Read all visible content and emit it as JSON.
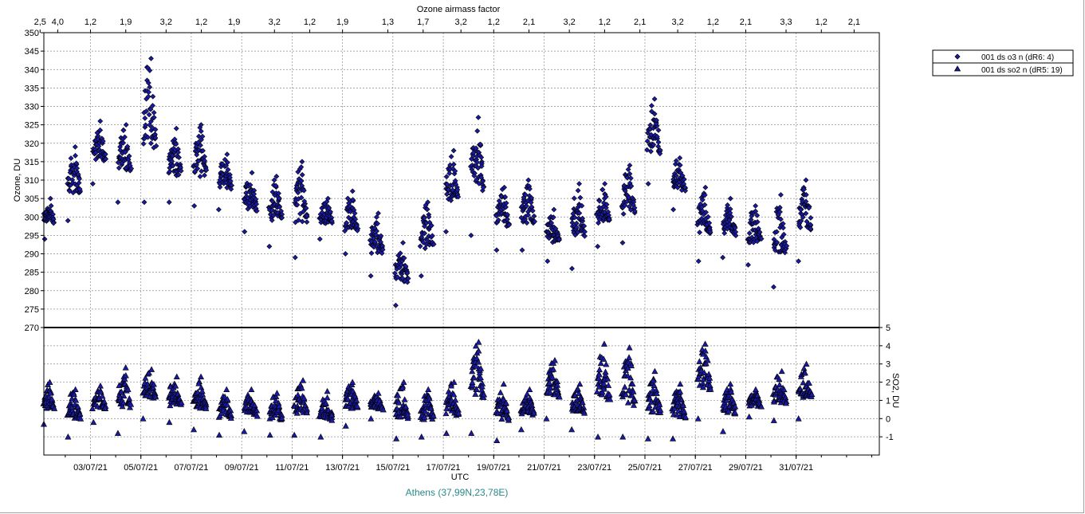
{
  "chart_data": {
    "type": "scatter",
    "top_axis": {
      "label": "Ozone airmass factor",
      "ticks": [
        {
          "x": 0.0,
          "label": "2,5"
        },
        {
          "x": 0.7,
          "label": "4,0"
        },
        {
          "x": 2.0,
          "label": "1,2"
        },
        {
          "x": 3.4,
          "label": "1,9"
        },
        {
          "x": 5.0,
          "label": "3,2"
        },
        {
          "x": 6.4,
          "label": "1,2"
        },
        {
          "x": 7.7,
          "label": "1,9"
        },
        {
          "x": 9.3,
          "label": "3,2"
        },
        {
          "x": 10.7,
          "label": "1,2"
        },
        {
          "x": 12.0,
          "label": "1,9"
        },
        {
          "x": 13.8,
          "label": "1,3"
        },
        {
          "x": 15.2,
          "label": "1,7"
        },
        {
          "x": 16.7,
          "label": "3,2"
        },
        {
          "x": 18.0,
          "label": "1,2"
        },
        {
          "x": 19.4,
          "label": "2,1"
        },
        {
          "x": 21.0,
          "label": "3,2"
        },
        {
          "x": 22.4,
          "label": "1,2"
        },
        {
          "x": 23.8,
          "label": "2,1"
        },
        {
          "x": 25.3,
          "label": "3,2"
        },
        {
          "x": 26.7,
          "label": "1,2"
        },
        {
          "x": 28.0,
          "label": "2,1"
        },
        {
          "x": 29.6,
          "label": "3,3"
        },
        {
          "x": 31.0,
          "label": "1,2"
        },
        {
          "x": 32.3,
          "label": "2,1"
        }
      ]
    },
    "x_axis": {
      "label": "UTC",
      "range": [
        0.15,
        33.3
      ],
      "ticks": [
        {
          "x": 2.0,
          "label": "03/07/21"
        },
        {
          "x": 4.0,
          "label": "05/07/21"
        },
        {
          "x": 6.0,
          "label": "07/07/21"
        },
        {
          "x": 8.0,
          "label": "09/07/21"
        },
        {
          "x": 10.0,
          "label": "11/07/21"
        },
        {
          "x": 12.0,
          "label": "13/07/21"
        },
        {
          "x": 14.0,
          "label": "15/07/21"
        },
        {
          "x": 16.0,
          "label": "17/07/21"
        },
        {
          "x": 18.0,
          "label": "19/07/21"
        },
        {
          "x": 20.0,
          "label": "21/07/21"
        },
        {
          "x": 22.0,
          "label": "23/07/21"
        },
        {
          "x": 24.0,
          "label": "25/07/21"
        },
        {
          "x": 26.0,
          "label": "27/07/21"
        },
        {
          "x": 28.0,
          "label": "29/07/21"
        },
        {
          "x": 30.0,
          "label": "31/07/21"
        }
      ]
    },
    "ozone_panel": {
      "ylabel": "Ozone, DU",
      "ylim": [
        270,
        350
      ],
      "yticks": [
        270,
        275,
        280,
        285,
        290,
        295,
        300,
        305,
        310,
        315,
        320,
        325,
        330,
        335,
        340,
        345,
        350
      ],
      "grid": true
    },
    "so2_panel": {
      "ylabel": "SO2, DU",
      "ylim": [
        -2,
        5
      ],
      "yticks": [
        -1,
        0,
        1,
        2,
        3,
        4,
        5
      ],
      "grid": true
    },
    "legend": {
      "placement": "top-right",
      "items": [
        {
          "label": "001 ds o3  n (dR6: 4)",
          "marker": "diamond"
        },
        {
          "label": "001 ds so2 n (dR5: 19)",
          "marker": "triangle"
        }
      ]
    },
    "series": [
      {
        "name": "001 ds o3  n (dR6: 4)",
        "panel": "ozone",
        "marker": "diamond",
        "clusters": [
          {
            "x0": 0.15,
            "x1": 0.55,
            "lo": 294,
            "hi": 305
          },
          {
            "x0": 1.1,
            "x1": 1.6,
            "lo": 299,
            "hi": 319
          },
          {
            "x0": 2.1,
            "x1": 2.6,
            "lo": 309,
            "hi": 326
          },
          {
            "x0": 3.1,
            "x1": 3.6,
            "lo": 304,
            "hi": 325
          },
          {
            "x0": 4.1,
            "x1": 4.6,
            "lo": 304,
            "hi": 343
          },
          {
            "x0": 5.1,
            "x1": 5.6,
            "lo": 304,
            "hi": 324
          },
          {
            "x0": 6.1,
            "x1": 6.6,
            "lo": 303,
            "hi": 325
          },
          {
            "x0": 7.1,
            "x1": 7.6,
            "lo": 302,
            "hi": 317
          },
          {
            "x0": 8.1,
            "x1": 8.6,
            "lo": 296,
            "hi": 312
          },
          {
            "x0": 9.1,
            "x1": 9.6,
            "lo": 292,
            "hi": 311
          },
          {
            "x0": 10.1,
            "x1": 10.6,
            "lo": 289,
            "hi": 315
          },
          {
            "x0": 11.1,
            "x1": 11.6,
            "lo": 294,
            "hi": 305
          },
          {
            "x0": 12.1,
            "x1": 12.6,
            "lo": 290,
            "hi": 307
          },
          {
            "x0": 13.1,
            "x1": 13.6,
            "lo": 284,
            "hi": 301
          },
          {
            "x0": 14.1,
            "x1": 14.6,
            "lo": 276,
            "hi": 293
          },
          {
            "x0": 15.1,
            "x1": 15.6,
            "lo": 284,
            "hi": 304
          },
          {
            "x0": 16.1,
            "x1": 16.6,
            "lo": 296,
            "hi": 318
          },
          {
            "x0": 17.1,
            "x1": 17.6,
            "lo": 295,
            "hi": 327
          },
          {
            "x0": 18.1,
            "x1": 18.6,
            "lo": 291,
            "hi": 308
          },
          {
            "x0": 19.1,
            "x1": 19.6,
            "lo": 291,
            "hi": 310
          },
          {
            "x0": 20.1,
            "x1": 20.6,
            "lo": 288,
            "hi": 302
          },
          {
            "x0": 21.1,
            "x1": 21.6,
            "lo": 286,
            "hi": 309
          },
          {
            "x0": 22.1,
            "x1": 22.6,
            "lo": 292,
            "hi": 309
          },
          {
            "x0": 23.1,
            "x1": 23.6,
            "lo": 293,
            "hi": 314
          },
          {
            "x0": 24.1,
            "x1": 24.6,
            "lo": 309,
            "hi": 332
          },
          {
            "x0": 25.1,
            "x1": 25.6,
            "lo": 302,
            "hi": 316
          },
          {
            "x0": 26.1,
            "x1": 26.6,
            "lo": 288,
            "hi": 308
          },
          {
            "x0": 27.1,
            "x1": 27.6,
            "lo": 289,
            "hi": 305
          },
          {
            "x0": 28.1,
            "x1": 28.6,
            "lo": 287,
            "hi": 303
          },
          {
            "x0": 29.1,
            "x1": 29.6,
            "lo": 281,
            "hi": 306
          },
          {
            "x0": 30.1,
            "x1": 30.6,
            "lo": 288,
            "hi": 310
          }
        ]
      },
      {
        "name": "001 ds so2 n (dR5: 19)",
        "panel": "so2",
        "marker": "triangle",
        "clusters": [
          {
            "x0": 0.15,
            "x1": 0.55,
            "lo": -0.3,
            "hi": 2.0
          },
          {
            "x0": 1.1,
            "x1": 1.6,
            "lo": -1.0,
            "hi": 1.6
          },
          {
            "x0": 2.1,
            "x1": 2.6,
            "lo": -0.2,
            "hi": 1.8
          },
          {
            "x0": 3.1,
            "x1": 3.6,
            "lo": -0.8,
            "hi": 2.8
          },
          {
            "x0": 4.1,
            "x1": 4.6,
            "lo": 0.0,
            "hi": 2.7
          },
          {
            "x0": 5.1,
            "x1": 5.6,
            "lo": -0.2,
            "hi": 2.3
          },
          {
            "x0": 6.1,
            "x1": 6.6,
            "lo": -0.6,
            "hi": 2.3
          },
          {
            "x0": 7.1,
            "x1": 7.6,
            "lo": -0.9,
            "hi": 1.6
          },
          {
            "x0": 8.1,
            "x1": 8.6,
            "lo": -0.7,
            "hi": 1.6
          },
          {
            "x0": 9.1,
            "x1": 9.6,
            "lo": -0.9,
            "hi": 1.4
          },
          {
            "x0": 10.1,
            "x1": 10.6,
            "lo": -0.9,
            "hi": 2.1
          },
          {
            "x0": 11.1,
            "x1": 11.6,
            "lo": -1.0,
            "hi": 1.5
          },
          {
            "x0": 12.1,
            "x1": 12.6,
            "lo": -0.4,
            "hi": 2.0
          },
          {
            "x0": 13.1,
            "x1": 13.6,
            "lo": 0.0,
            "hi": 1.4
          },
          {
            "x0": 14.1,
            "x1": 14.6,
            "lo": -1.1,
            "hi": 2.0
          },
          {
            "x0": 15.1,
            "x1": 15.6,
            "lo": -1.0,
            "hi": 1.6
          },
          {
            "x0": 16.1,
            "x1": 16.6,
            "lo": -0.8,
            "hi": 2.0
          },
          {
            "x0": 17.1,
            "x1": 17.6,
            "lo": -0.8,
            "hi": 4.2
          },
          {
            "x0": 18.1,
            "x1": 18.6,
            "lo": -1.2,
            "hi": 1.9
          },
          {
            "x0": 19.1,
            "x1": 19.6,
            "lo": -0.6,
            "hi": 1.6
          },
          {
            "x0": 20.1,
            "x1": 20.6,
            "lo": 0.0,
            "hi": 3.2
          },
          {
            "x0": 21.1,
            "x1": 21.6,
            "lo": -0.6,
            "hi": 1.9
          },
          {
            "x0": 22.1,
            "x1": 22.6,
            "lo": -1.0,
            "hi": 4.1
          },
          {
            "x0": 23.1,
            "x1": 23.6,
            "lo": -1.0,
            "hi": 3.9
          },
          {
            "x0": 24.1,
            "x1": 24.6,
            "lo": -1.1,
            "hi": 2.6
          },
          {
            "x0": 25.1,
            "x1": 25.6,
            "lo": -1.1,
            "hi": 1.9
          },
          {
            "x0": 26.1,
            "x1": 26.6,
            "lo": 0.0,
            "hi": 4.1
          },
          {
            "x0": 27.1,
            "x1": 27.6,
            "lo": -0.7,
            "hi": 1.9
          },
          {
            "x0": 28.1,
            "x1": 28.6,
            "lo": 0.1,
            "hi": 1.6
          },
          {
            "x0": 29.1,
            "x1": 29.6,
            "lo": -0.1,
            "hi": 2.6
          },
          {
            "x0": 30.1,
            "x1": 30.6,
            "lo": 0.0,
            "hi": 3.0
          }
        ]
      }
    ],
    "location_label": "Athens (37,99N,23,78E)"
  },
  "colors": {
    "marker_fill": "#1a1aa6",
    "marker_stroke": "#000000",
    "grid": "#8c8c8c",
    "divider": "#000000",
    "location_text": "#2a8a8a"
  }
}
